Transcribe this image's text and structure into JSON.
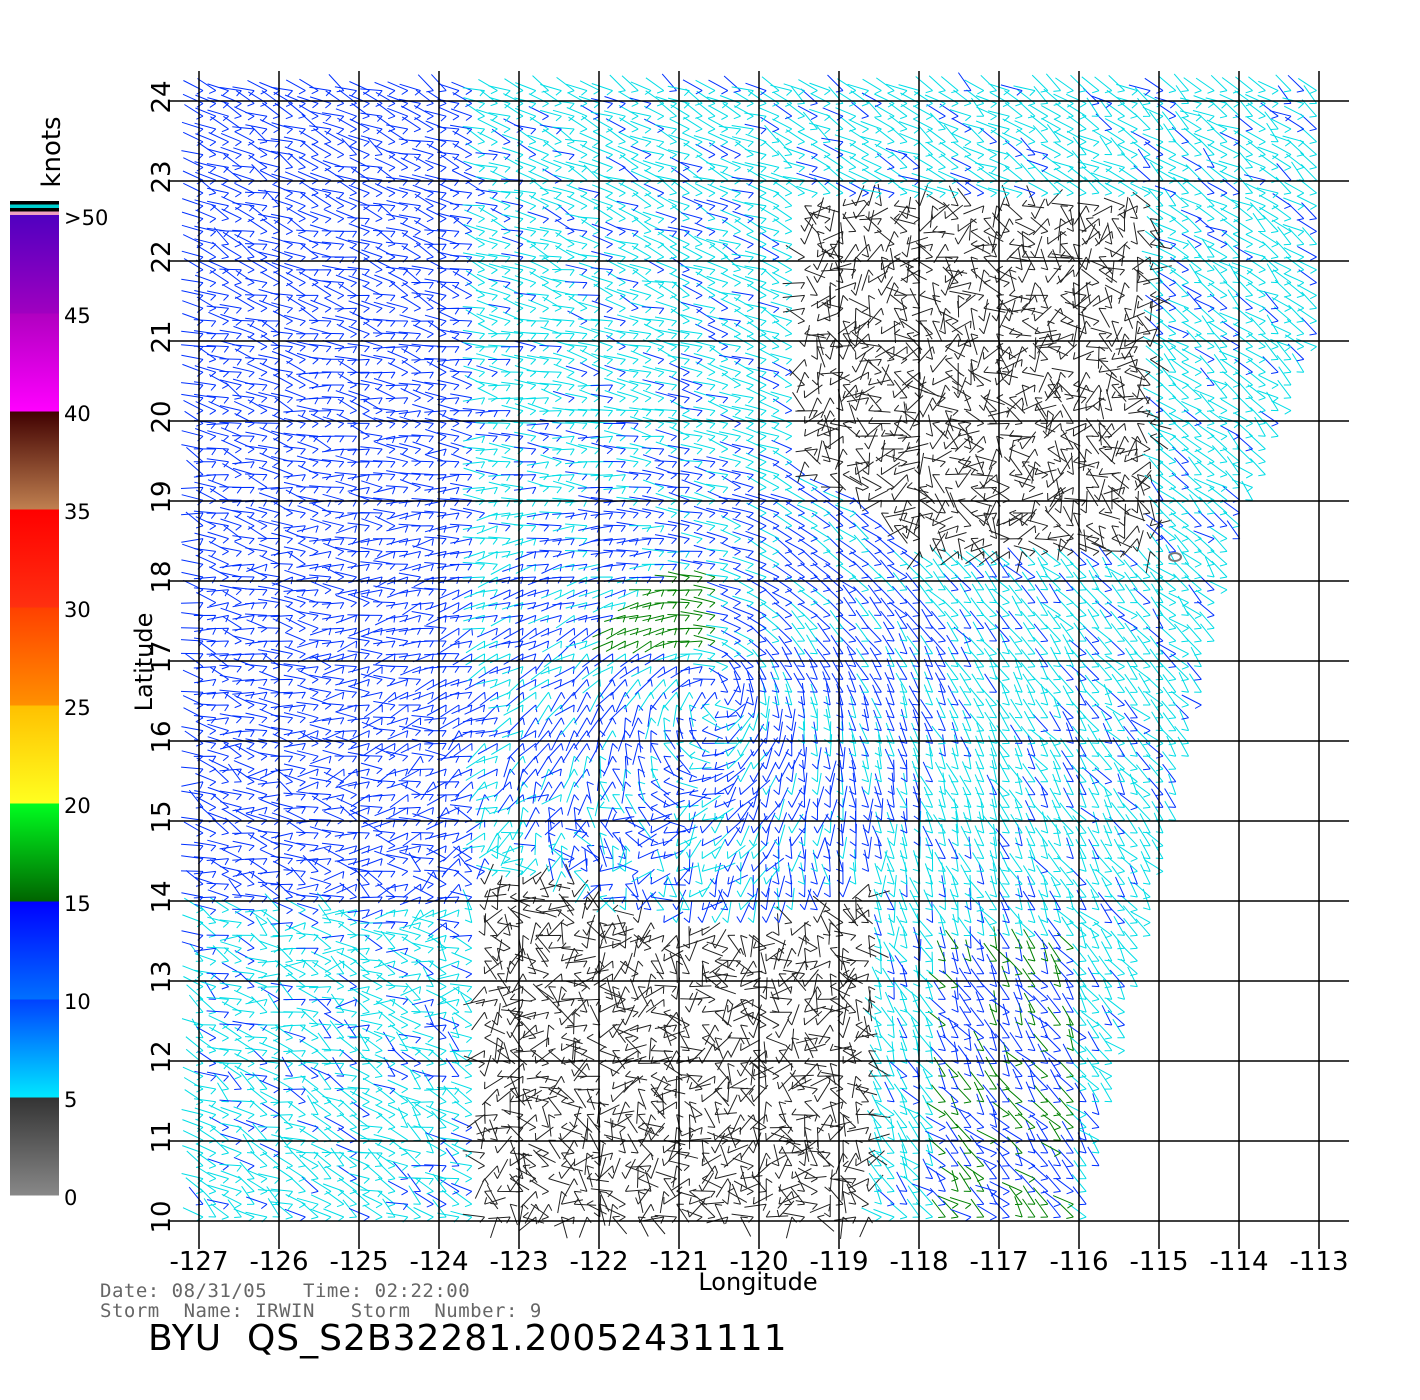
{
  "chart_data": {
    "type": "vector-field",
    "xlabel": "Longitude",
    "ylabel": "Latitude",
    "x_ticks": [
      "-127",
      "-126",
      "-125",
      "-124",
      "-123",
      "-122",
      "-121",
      "-120",
      "-119",
      "-118",
      "-117",
      "-116",
      "-115",
      "-114",
      "-113"
    ],
    "y_ticks": [
      "10",
      "11",
      "12",
      "13",
      "14",
      "15",
      "16",
      "17",
      "18",
      "19",
      "20",
      "21",
      "22",
      "23",
      "24"
    ],
    "xlim": [
      -127,
      -113
    ],
    "ylim": [
      10,
      24
    ],
    "grid": true,
    "colorbar": {
      "unit": "knots",
      "tick_labels": [
        "0",
        "5",
        "10",
        "15",
        "20",
        "25",
        "30",
        "35",
        "40",
        "45",
        ">50"
      ],
      "bands": [
        {
          "from": 0,
          "to": 5,
          "colors": [
            "#888888",
            "#333333"
          ]
        },
        {
          "from": 5,
          "to": 10,
          "colors": [
            "#00e8ff",
            "#0040ff"
          ]
        },
        {
          "from": 10,
          "to": 15,
          "colors": [
            "#0070ff",
            "#0000ff"
          ]
        },
        {
          "from": 15,
          "to": 20,
          "colors": [
            "#006400",
            "#00ff20"
          ]
        },
        {
          "from": 20,
          "to": 25,
          "colors": [
            "#ffff20",
            "#ffc000"
          ]
        },
        {
          "from": 25,
          "to": 30,
          "colors": [
            "#ff9000",
            "#ff4000"
          ]
        },
        {
          "from": 30,
          "to": 35,
          "colors": [
            "#ff3010",
            "#ff0000"
          ]
        },
        {
          "from": 35,
          "to": 40,
          "colors": [
            "#c08050",
            "#400000"
          ]
        },
        {
          "from": 40,
          "to": 45,
          "colors": [
            "#ff00ff",
            "#b000c0"
          ]
        },
        {
          "from": 45,
          "to": 50,
          "colors": [
            "#a000c0",
            "#5000c0"
          ]
        }
      ],
      "top_stripes": [
        "#000000",
        "#00d0d0",
        "#000000",
        "#f0a0c0"
      ]
    },
    "speed_colors": {
      "calm": "#222222",
      "light": "#00dde6",
      "moderate": "#0030ff",
      "strong": "#008000"
    },
    "circulation_center": {
      "lon": -120.5,
      "lat": 16.6
    },
    "marker": {
      "lon": -114.8,
      "lat": 18.3
    }
  },
  "info": {
    "date_label": "Date:",
    "date": "08/31/05",
    "time_label": "Time:",
    "time": "02:22:00",
    "storm_name_label": "Storm  Name:",
    "storm_name": "IRWIN",
    "storm_number_label": "Storm  Number:",
    "storm_number": "9",
    "product": "BYU  QS_S2B32281.20052431111"
  }
}
